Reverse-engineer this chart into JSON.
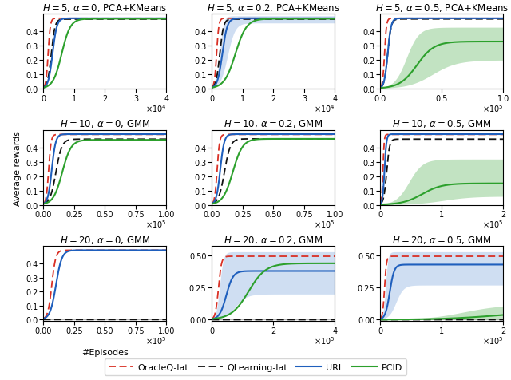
{
  "subplots": [
    {
      "title": "$H = 5,\\, \\alpha = 0$, PCA+KMeans",
      "xmax": 40000,
      "ymin": 0.0,
      "ymax": 0.525,
      "yticks": [
        0.0,
        0.1,
        0.2,
        0.3,
        0.4
      ],
      "xtick_style": "1e4",
      "row": 0,
      "col": 0,
      "oracle": {
        "knee": 1800,
        "sat": 0.493,
        "shade": false
      },
      "qlearn": {
        "knee": 3000,
        "sat": 0.487,
        "const": false,
        "shade": false
      },
      "url": {
        "knee": 3500,
        "sat": 0.493,
        "shade": false
      },
      "pcid": {
        "knee": 7000,
        "sat": 0.49,
        "shade": false,
        "present": true
      }
    },
    {
      "title": "$H = 5,\\, \\alpha = 0.2$, PCA+KMeans",
      "xmax": 40000,
      "ymin": 0.0,
      "ymax": 0.525,
      "yticks": [
        0.0,
        0.1,
        0.2,
        0.3,
        0.4
      ],
      "xtick_style": "1e4",
      "row": 0,
      "col": 1,
      "oracle": {
        "knee": 1800,
        "sat": 0.493,
        "shade": false
      },
      "qlearn": {
        "knee": 3000,
        "sat": 0.487,
        "const": false,
        "shade": false
      },
      "url": {
        "knee": 4000,
        "sat": 0.493,
        "shade": true,
        "shade_lo_knee": 6000,
        "shade_lo_sat": 0.46,
        "shade_hi_knee": 3000,
        "shade_hi_sat": 0.51
      },
      "pcid": {
        "knee": 9000,
        "sat": 0.49,
        "shade": false,
        "present": true
      }
    },
    {
      "title": "$H = 5,\\, \\alpha = 0.5$, PCA+KMeans",
      "xmax": 100000,
      "ymin": 0.0,
      "ymax": 0.525,
      "yticks": [
        0.0,
        0.1,
        0.2,
        0.3,
        0.4
      ],
      "xtick_style": "1e5",
      "row": 0,
      "col": 2,
      "oracle": {
        "knee": 4000,
        "sat": 0.493,
        "shade": false
      },
      "qlearn": {
        "knee": 7000,
        "sat": 0.488,
        "const": false,
        "shade": false
      },
      "url": {
        "knee": 7000,
        "sat": 0.493,
        "shade": false
      },
      "pcid": {
        "knee": 35000,
        "sat": 0.33,
        "shade": true,
        "shade_lo_knee": 50000,
        "shade_lo_sat": 0.2,
        "shade_hi_knee": 25000,
        "shade_hi_sat": 0.43,
        "present": true
      }
    },
    {
      "title": "$H = 10,\\, \\alpha = 0$, GMM",
      "xmax": 100000,
      "ymin": 0.0,
      "ymax": 0.525,
      "yticks": [
        0.0,
        0.1,
        0.2,
        0.3,
        0.4
      ],
      "xtick_style": "1e5_025",
      "row": 1,
      "col": 0,
      "oracle": {
        "knee": 5000,
        "sat": 0.493,
        "shade": false
      },
      "qlearn": {
        "knee": 12000,
        "sat": 0.46,
        "const": false,
        "shade": false
      },
      "url": {
        "knee": 8000,
        "sat": 0.495,
        "shade": false
      },
      "pcid": {
        "knee": 18000,
        "sat": 0.455,
        "shade": false,
        "present": true
      }
    },
    {
      "title": "$H = 10,\\, \\alpha = 0.2$, GMM",
      "xmax": 100000,
      "ymin": 0.0,
      "ymax": 0.525,
      "yticks": [
        0.0,
        0.1,
        0.2,
        0.3,
        0.4
      ],
      "xtick_style": "1e5_025",
      "row": 1,
      "col": 1,
      "oracle": {
        "knee": 5000,
        "sat": 0.493,
        "shade": false
      },
      "qlearn": {
        "knee": 12000,
        "sat": 0.462,
        "const": false,
        "shade": false
      },
      "url": {
        "knee": 8000,
        "sat": 0.495,
        "shade": false
      },
      "pcid": {
        "knee": 20000,
        "sat": 0.462,
        "shade": false,
        "present": true
      }
    },
    {
      "title": "$H = 10,\\, \\alpha = 0.5$, GMM",
      "xmax": 200000,
      "ymin": 0.0,
      "ymax": 0.525,
      "yticks": [
        0.0,
        0.1,
        0.2,
        0.3,
        0.4
      ],
      "xtick_style": "1e5_int",
      "row": 1,
      "col": 2,
      "oracle": {
        "knee": 5000,
        "sat": 0.493,
        "shade": false
      },
      "qlearn": {
        "knee": 12000,
        "sat": 0.46,
        "const": false,
        "shade": false
      },
      "url": {
        "knee": 8000,
        "sat": 0.495,
        "shade": false
      },
      "pcid": {
        "knee": 80000,
        "sat": 0.15,
        "shade": true,
        "shade_lo_knee": 120000,
        "shade_lo_sat": 0.06,
        "shade_hi_knee": 55000,
        "shade_hi_sat": 0.32,
        "present": true
      }
    },
    {
      "title": "$H = 20,\\, \\alpha = 0$, GMM",
      "xmax": 100000,
      "ymin": -0.01,
      "ymax": 0.525,
      "yticks": [
        0.0,
        0.1,
        0.2,
        0.3,
        0.4
      ],
      "xtick_style": "1e5_025",
      "row": 2,
      "col": 0,
      "oracle": {
        "knee": 8000,
        "sat": 0.495,
        "shade": false
      },
      "qlearn": {
        "knee": -1,
        "sat": 0.0,
        "const": true,
        "shade": false
      },
      "url": {
        "knee": 12000,
        "sat": 0.495,
        "shade": false
      },
      "pcid": {
        "present": false
      }
    },
    {
      "title": "$H = 20,\\, \\alpha = 0.2$, GMM",
      "xmax": 400000,
      "ymin": -0.01,
      "ymax": 0.575,
      "yticks": [
        0.0,
        0.25,
        0.5
      ],
      "xtick_style": "1e5_int",
      "row": 2,
      "col": 1,
      "oracle": {
        "knee": 25000,
        "sat": 0.495,
        "shade": false
      },
      "qlearn": {
        "knee": -1,
        "sat": 0.0,
        "const": true,
        "shade": false
      },
      "url": {
        "knee": 55000,
        "sat": 0.38,
        "shade": true,
        "shade_lo_knee": 90000,
        "shade_lo_sat": 0.2,
        "shade_hi_knee": 30000,
        "shade_hi_sat": 0.53
      },
      "pcid": {
        "knee": 140000,
        "sat": 0.44,
        "shade": false,
        "present": true
      }
    },
    {
      "title": "$H = 20,\\, \\alpha = 0.5$, GMM",
      "xmax": 200000,
      "ymin": -0.01,
      "ymax": 0.575,
      "yticks": [
        0.0,
        0.25,
        0.5
      ],
      "xtick_style": "1e5_int",
      "row": 2,
      "col": 2,
      "oracle": {
        "knee": 8000,
        "sat": 0.495,
        "shade": false
      },
      "qlearn": {
        "knee": -1,
        "sat": 0.0,
        "const": true,
        "shade": false
      },
      "url": {
        "knee": 18000,
        "sat": 0.43,
        "shade": true,
        "shade_lo_knee": 30000,
        "shade_lo_sat": 0.27,
        "shade_hi_knee": 10000,
        "shade_hi_sat": 0.53
      },
      "pcid": {
        "knee": 220000,
        "sat": 0.065,
        "shade": true,
        "shade_lo_knee": 300000,
        "shade_lo_sat": 0.01,
        "shade_hi_knee": 160000,
        "shade_hi_sat": 0.12,
        "present": true
      }
    }
  ],
  "colors": {
    "oracle": "#d93025",
    "qlearn": "#111111",
    "url": "#1f5fbd",
    "pcid": "#2ca02c"
  },
  "shade_colors": {
    "url": "#a8c4e8",
    "pcid": "#90cc90"
  },
  "legend": {
    "oracle_label": "OracleQ-lat",
    "qlearn_label": "QLearning-lat",
    "url_label": "URL",
    "pcid_label": "PCID"
  },
  "ylabel": "Average rewards",
  "xlabel": "#Episodes",
  "title_fontsize": 8.5,
  "label_fontsize": 8,
  "tick_fontsize": 7
}
